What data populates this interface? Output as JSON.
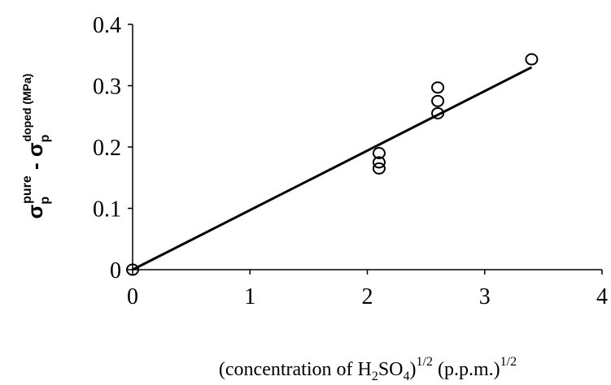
{
  "chart_data": {
    "type": "scatter",
    "x": [
      0,
      2.1,
      2.1,
      2.1,
      2.6,
      2.6,
      2.6,
      3.4
    ],
    "values": [
      0,
      0.165,
      0.175,
      0.19,
      0.255,
      0.275,
      0.297,
      0.343
    ],
    "color": "#000000",
    "fit_line": {
      "x": [
        0,
        3.4
      ],
      "values": [
        0,
        0.33
      ],
      "color": "#000000"
    },
    "xlim": [
      0,
      4
    ],
    "xticks": [
      0,
      1,
      2,
      3,
      4
    ],
    "ylim": [
      0,
      0.4
    ],
    "yticks": [
      0,
      0.1,
      0.2,
      0.3,
      0.4
    ],
    "grid": false,
    "xlabel": [
      "(concentration of H",
      "2",
      "SO",
      "4",
      ")",
      "1/2",
      " (p.p.m.)",
      "1/2"
    ],
    "ylabel": [
      "σ",
      "p",
      "pure",
      " - ",
      "σ",
      "p",
      "doped (MPa)"
    ]
  }
}
